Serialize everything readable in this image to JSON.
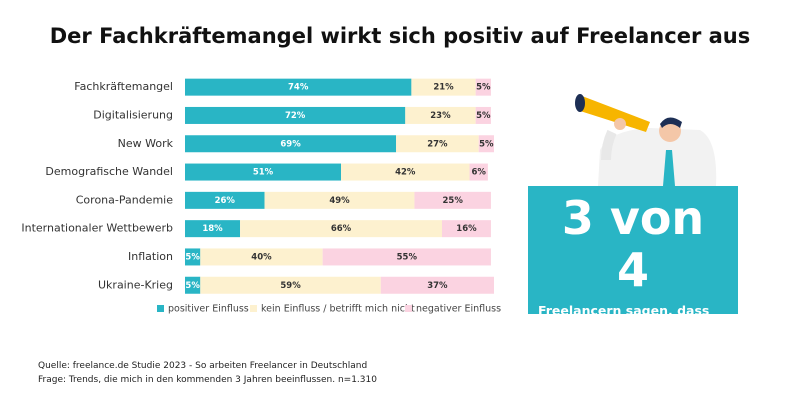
{
  "chart_data": {
    "type": "bar",
    "stacked": true,
    "orientation": "horizontal",
    "title": "Der Fachkräftemangel wirkt sich positiv auf Freelancer aus",
    "categories": [
      "Fachkräftemangel",
      "Digitalisierung",
      "New Work",
      "Demografische Wandel",
      "Corona-Pandemie",
      "Internationaler Wettbewerb",
      "Inflation",
      "Ukraine-Krieg"
    ],
    "series": [
      {
        "name": "positiver Einfluss",
        "color": "#29b5c5",
        "label_color": "#ffffff",
        "values": [
          74,
          72,
          69,
          51,
          26,
          18,
          5,
          5
        ],
        "value_labels": [
          "74%",
          "72%",
          "69%",
          "51%",
          "26%",
          "18%",
          "5%",
          "5%"
        ]
      },
      {
        "name": "kein Einfluss / betrifft mich nicht",
        "color": "#fdf1cf",
        "label_color": "#333333",
        "values": [
          21,
          23,
          27,
          42,
          49,
          66,
          40,
          59
        ],
        "value_labels": [
          "21%",
          "23%",
          "27%",
          "42%",
          "49%",
          "66%",
          "40%",
          "59%"
        ]
      },
      {
        "name": "negativer Einfluss",
        "color": "#fbd3e1",
        "label_color": "#333333",
        "values": [
          5,
          5,
          5,
          6,
          25,
          16,
          55,
          37
        ],
        "value_labels": [
          "5%",
          "5%",
          "5%",
          "6%",
          "25%",
          "16%",
          "55%",
          "37%"
        ]
      }
    ],
    "legend": "bottom"
  },
  "callout": {
    "headline": "3 von 4",
    "text": "Freelancern sagen, dass der Fachkräftemangel sich positiv auswirkt."
  },
  "footer": {
    "source": "Quelle: freelance.de Studie 2023 - So arbeiten Freelancer in Deutschland",
    "question": "Frage: Trends, die mich in den kommenden 3 Jahren beeinflussen. n=1.310"
  }
}
